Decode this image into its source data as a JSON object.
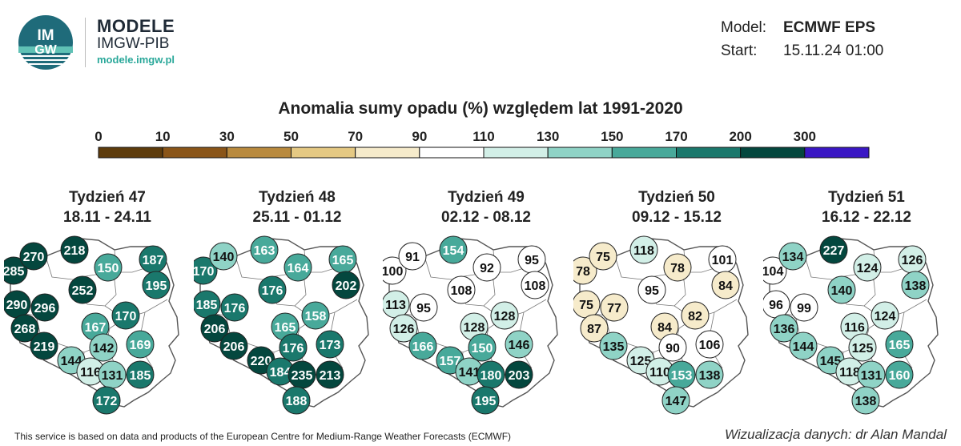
{
  "header": {
    "logo_text": "IMGW",
    "brand_title": "MODELE",
    "brand_subtitle": "IMGW-PIB",
    "brand_url": "modele.imgw.pl",
    "model_label": "Model:",
    "model_value": "ECMWF EPS",
    "start_label": "Start:",
    "start_value": "15.11.24 01:00"
  },
  "title": "Anomalia sumy opadu (%) względem lat 1991-2020",
  "scale": {
    "ticks": [
      "0",
      "10",
      "30",
      "50",
      "70",
      "90",
      "110",
      "130",
      "150",
      "170",
      "200",
      "300"
    ],
    "colors": [
      "#5e3c0c",
      "#8a5518",
      "#b98a3e",
      "#e5c983",
      "#f6ebcb",
      "#ffffff",
      "#d2efe7",
      "#8fd3c6",
      "#48a99a",
      "#1a786c",
      "#04473e",
      "#3a17c4"
    ]
  },
  "weeks": [
    {
      "title": "Tydzień 47",
      "dates": "18.11 - 24.11",
      "values": [
        "285",
        "270",
        "218",
        "150",
        "187",
        "195",
        "252",
        "290",
        "296",
        "268",
        "170",
        "167",
        "219",
        "142",
        "169",
        "144",
        "116",
        "131",
        "185",
        "172"
      ]
    },
    {
      "title": "Tydzień 48",
      "dates": "25.11 - 01.12",
      "values": [
        "170",
        "140",
        "163",
        "164",
        "165",
        "202",
        "176",
        "185",
        "176",
        "206",
        "158",
        "165",
        "206",
        "176",
        "173",
        "220",
        "184",
        "235",
        "213",
        "188"
      ]
    },
    {
      "title": "Tydzień 49",
      "dates": "02.12 - 08.12",
      "values": [
        "100",
        "91",
        "154",
        "92",
        "95",
        "108",
        "108",
        "113",
        "95",
        "126",
        "128",
        "128",
        "166",
        "150",
        "146",
        "157",
        "141",
        "180",
        "203",
        "195"
      ]
    },
    {
      "title": "Tydzień 50",
      "dates": "09.12 - 15.12",
      "values": [
        "78",
        "75",
        "118",
        "78",
        "101",
        "84",
        "95",
        "75",
        "77",
        "87",
        "82",
        "84",
        "135",
        "90",
        "106",
        "125",
        "110",
        "153",
        "138",
        "147"
      ]
    },
    {
      "title": "Tydzień 51",
      "dates": "16.12 - 22.12",
      "values": [
        "104",
        "134",
        "227",
        "124",
        "126",
        "138",
        "140",
        "96",
        "99",
        "136",
        "124",
        "116",
        "144",
        "125",
        "165",
        "145",
        "118",
        "131",
        "160",
        "138"
      ]
    }
  ],
  "footer": {
    "left": "This service is based on data and products of the European Centre for Medium-Range Weather Forecasts (ECMWF)",
    "right": "Wizualizacja danych: dr Alan Mandal"
  }
}
